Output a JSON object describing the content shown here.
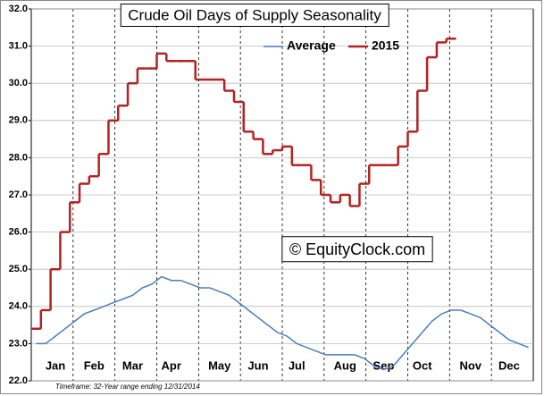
{
  "chart_data": {
    "type": "line",
    "title": "Crude Oil Days of Supply Seasonality",
    "annotation": "© EquityClock.com",
    "footnote": "Timeframe: 32-Year range ending 12/31/2014",
    "categories": [
      null,
      null,
      "Jan",
      null,
      null,
      null,
      "Feb",
      null,
      null,
      null,
      "Mar",
      null,
      null,
      null,
      "Apr",
      null,
      null,
      null,
      null,
      "May",
      null,
      null,
      null,
      "Jun",
      null,
      null,
      null,
      "Jul",
      null,
      null,
      null,
      null,
      "Aug",
      null,
      null,
      null,
      "Sep",
      null,
      null,
      null,
      "Oct",
      null,
      null,
      null,
      null,
      "Nov",
      null,
      null,
      null,
      "Dec",
      null,
      null
    ],
    "series": [
      {
        "name": "Average",
        "color": "#4a7ebb",
        "style": "line",
        "values": [
          23.0,
          23.0,
          23.2,
          23.4,
          23.6,
          23.8,
          23.9,
          24.0,
          24.1,
          24.2,
          24.3,
          24.5,
          24.6,
          24.8,
          24.7,
          24.7,
          24.6,
          24.5,
          24.5,
          24.4,
          24.3,
          24.1,
          23.9,
          23.7,
          23.5,
          23.3,
          23.2,
          23.0,
          22.9,
          22.8,
          22.7,
          22.7,
          22.7,
          22.7,
          22.6,
          22.4,
          22.3,
          22.4,
          22.7,
          23.0,
          23.3,
          23.6,
          23.8,
          23.9,
          23.9,
          23.8,
          23.7,
          23.5,
          23.3,
          23.1,
          23.0,
          22.9
        ]
      },
      {
        "name": "2015",
        "color": "#b22222",
        "style": "step",
        "values": [
          23.4,
          23.9,
          25.0,
          26.0,
          26.8,
          27.3,
          27.5,
          28.1,
          29.0,
          29.4,
          30.0,
          30.4,
          30.4,
          30.8,
          30.6,
          30.6,
          30.6,
          30.1,
          30.1,
          30.1,
          29.8,
          29.5,
          28.7,
          28.5,
          28.1,
          28.2,
          28.3,
          27.8,
          27.8,
          27.4,
          27.0,
          26.8,
          27.0,
          26.7,
          27.3,
          27.8,
          27.8,
          27.8,
          28.3,
          28.7,
          29.8,
          30.7,
          31.1,
          31.2,
          null,
          null,
          null,
          null,
          null,
          null,
          null,
          null
        ]
      }
    ],
    "ylim": [
      22,
      32
    ],
    "yticks": [
      {
        "value": 22,
        "label": "22.0"
      },
      {
        "value": 23,
        "label": "23.0"
      },
      {
        "value": 24,
        "label": "24.0"
      },
      {
        "value": 25,
        "label": "25.0"
      },
      {
        "value": 26,
        "label": "26.0"
      },
      {
        "value": 27,
        "label": "27.0"
      },
      {
        "value": 28,
        "label": "28.0"
      },
      {
        "value": 29,
        "label": "29.0"
      },
      {
        "value": 30,
        "label": "30.0"
      },
      {
        "value": 31,
        "label": "31.0"
      },
      {
        "value": 32,
        "label": "32.0"
      }
    ],
    "grid": true,
    "legend": "top-center"
  }
}
